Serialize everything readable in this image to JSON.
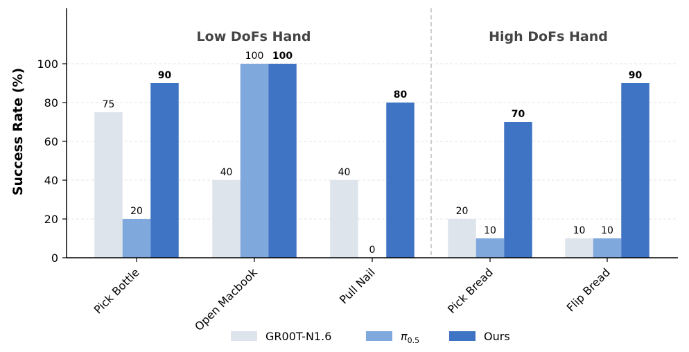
{
  "chart_data": {
    "type": "bar",
    "categories": [
      "Pick Bottle",
      "Open Macbook",
      "Pull Nail",
      "Pick Bread",
      "Flip Bread"
    ],
    "series": [
      {
        "name": "GR00T-N1.6",
        "name_base": "GR00T-N1.6",
        "name_sub": "",
        "color": "#dde4ec",
        "values": [
          75,
          40,
          40,
          20,
          10
        ],
        "bold_labels": false
      },
      {
        "name": "π0.5",
        "name_base": "π",
        "name_sub": "0.5",
        "color": "#7fa8dc",
        "values": [
          20,
          100,
          0,
          10,
          10
        ],
        "bold_labels": false
      },
      {
        "name": "Ours",
        "name_base": "Ours",
        "name_sub": "",
        "color": "#3f73c4",
        "values": [
          90,
          100,
          80,
          70,
          90
        ],
        "bold_labels": true
      }
    ],
    "ylabel": "Success Rate (%)",
    "xlabel": "",
    "ylim": [
      0,
      125
    ],
    "yticks": [
      0,
      20,
      40,
      60,
      80,
      100
    ],
    "grid": true,
    "legend_position": "bottom-center",
    "groups": [
      {
        "title": "Low DoFs Hand",
        "categories": [
          "Pick Bottle",
          "Open Macbook",
          "Pull Nail"
        ]
      },
      {
        "title": "High DoFs Hand",
        "categories": [
          "Pick Bread",
          "Flip Bread"
        ]
      }
    ]
  }
}
